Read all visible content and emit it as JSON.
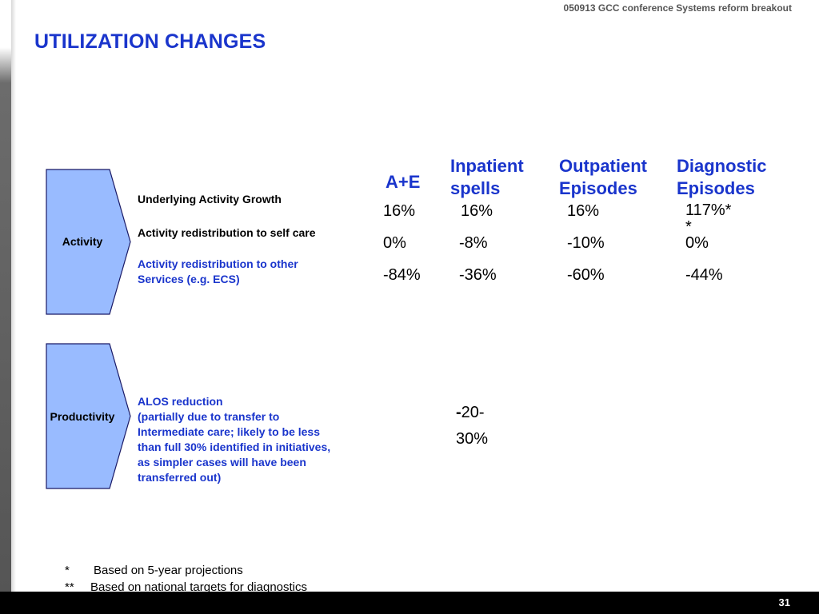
{
  "header": {
    "note": "050913 GCC conference Systems reform breakout"
  },
  "title": "UTILIZATION CHANGES",
  "groups": {
    "activity": {
      "label": "Activity"
    },
    "productivity": {
      "label": "Productivity"
    }
  },
  "columns": {
    "ae": "A+E",
    "inpatient": [
      "Inpatient",
      "spells"
    ],
    "outpatient": [
      "Outpatient",
      "Episodes"
    ],
    "diagnostic": [
      "Diagnostic",
      "Episodes"
    ]
  },
  "rows": {
    "growth": {
      "label": "Underlying Activity Growth",
      "ae": "16%",
      "inpatient": "16%",
      "outpatient": "16%",
      "diagnostic_line1": "117%*",
      "diagnostic_line2": "*"
    },
    "self_care": {
      "label": "Activity redistribution to self care",
      "ae": "0%",
      "inpatient": "-8%",
      "outpatient": "-10%",
      "diagnostic": "0%"
    },
    "other_services": {
      "label_lines": [
        "Activity redistribution to other",
        "Services (e.g. ECS)"
      ],
      "ae": "-84%",
      "inpatient": "-36%",
      "outpatient": "-60%",
      "diagnostic": "-44%"
    },
    "alos": {
      "label_lines": [
        "ALOS reduction",
        "(partially due to transfer to",
        "Intermediate care; likely to be less",
        "than full 30% identified in initiatives,",
        "as simpler cases will have been",
        "transferred out)"
      ],
      "inpatient_line1_dash": "-",
      "inpatient_line1_rest": "20-",
      "inpatient_line2": "30%"
    }
  },
  "footnotes": [
    {
      "mark": "*",
      "text": "Based on 5-year projections"
    },
    {
      "mark": "**",
      "text": "Based on national targets for diagnostics"
    }
  ],
  "page_number": "31",
  "colors": {
    "title_blue": "#1a35cc",
    "chevron_fill": "#99bbff",
    "chevron_stroke": "#1a1a66",
    "bottom_bar": "#000000"
  }
}
